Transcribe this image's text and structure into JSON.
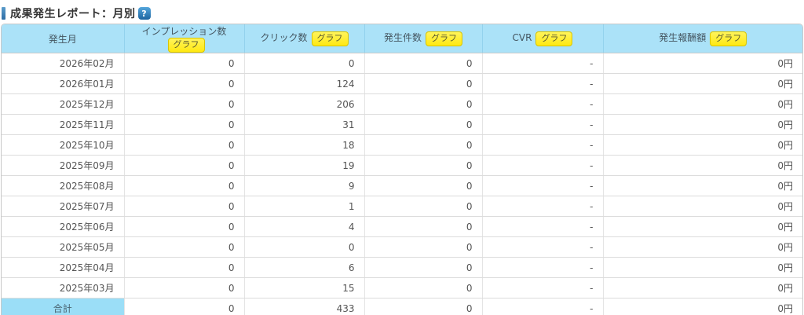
{
  "page": {
    "title": "成果発生レポート：月別",
    "help_icon_glyph": "?"
  },
  "table": {
    "columns": [
      {
        "key": "month",
        "label": "発生月",
        "graph_button": null
      },
      {
        "key": "impressions",
        "label": "インプレッション数",
        "graph_button": "グラフ"
      },
      {
        "key": "clicks",
        "label": "クリック数",
        "graph_button": "グラフ"
      },
      {
        "key": "occurrences",
        "label": "発生件数",
        "graph_button": "グラフ"
      },
      {
        "key": "cvr",
        "label": "CVR",
        "graph_button": "グラフ"
      },
      {
        "key": "reward",
        "label": "発生報酬額",
        "graph_button": "グラフ"
      }
    ],
    "rows": [
      {
        "month": "2026年02月",
        "impressions": "0",
        "clicks": "0",
        "occurrences": "0",
        "cvr": "-",
        "reward": "0円"
      },
      {
        "month": "2026年01月",
        "impressions": "0",
        "clicks": "124",
        "occurrences": "0",
        "cvr": "-",
        "reward": "0円"
      },
      {
        "month": "2025年12月",
        "impressions": "0",
        "clicks": "206",
        "occurrences": "0",
        "cvr": "-",
        "reward": "0円"
      },
      {
        "month": "2025年11月",
        "impressions": "0",
        "clicks": "31",
        "occurrences": "0",
        "cvr": "-",
        "reward": "0円"
      },
      {
        "month": "2025年10月",
        "impressions": "0",
        "clicks": "18",
        "occurrences": "0",
        "cvr": "-",
        "reward": "0円"
      },
      {
        "month": "2025年09月",
        "impressions": "0",
        "clicks": "19",
        "occurrences": "0",
        "cvr": "-",
        "reward": "0円"
      },
      {
        "month": "2025年08月",
        "impressions": "0",
        "clicks": "9",
        "occurrences": "0",
        "cvr": "-",
        "reward": "0円"
      },
      {
        "month": "2025年07月",
        "impressions": "0",
        "clicks": "1",
        "occurrences": "0",
        "cvr": "-",
        "reward": "0円"
      },
      {
        "month": "2025年06月",
        "impressions": "0",
        "clicks": "4",
        "occurrences": "0",
        "cvr": "-",
        "reward": "0円"
      },
      {
        "month": "2025年05月",
        "impressions": "0",
        "clicks": "0",
        "occurrences": "0",
        "cvr": "-",
        "reward": "0円"
      },
      {
        "month": "2025年04月",
        "impressions": "0",
        "clicks": "6",
        "occurrences": "0",
        "cvr": "-",
        "reward": "0円"
      },
      {
        "month": "2025年03月",
        "impressions": "0",
        "clicks": "15",
        "occurrences": "0",
        "cvr": "-",
        "reward": "0円"
      }
    ],
    "total_row": {
      "month": "合計",
      "impressions": "0",
      "clicks": "433",
      "occurrences": "0",
      "cvr": "-",
      "reward": "0円"
    }
  },
  "colors": {
    "header_bg": "#abe2f8",
    "total_cell_bg": "#9bdef7",
    "graph_button_bg": "#ffee22",
    "graph_button_border": "#d9c400",
    "title_bar_blue": "#2e6da4",
    "help_icon_blue": "#1c649f"
  }
}
